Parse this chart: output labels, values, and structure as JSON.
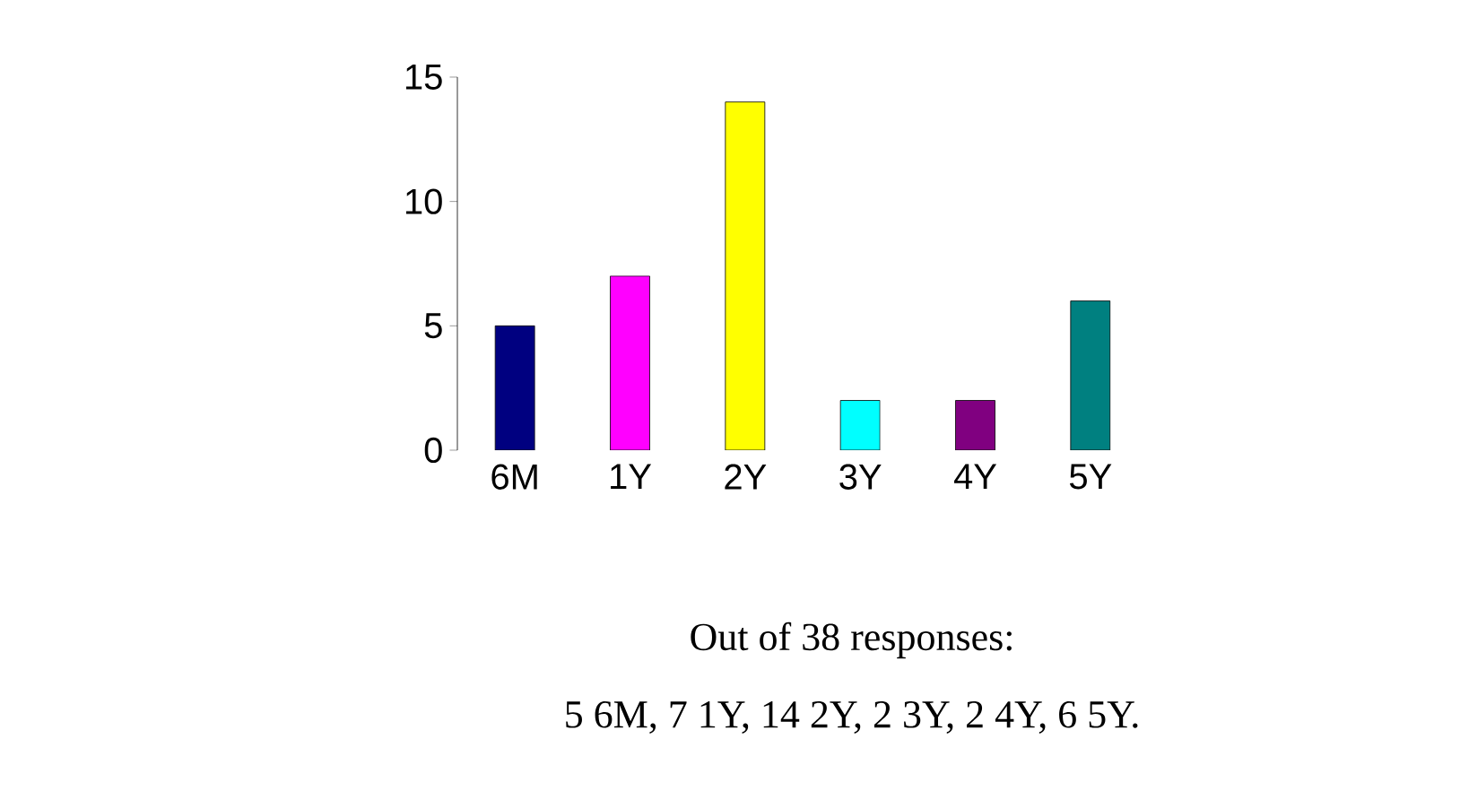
{
  "chart_data": {
    "type": "bar",
    "categories": [
      "6M",
      "1Y",
      "2Y",
      "3Y",
      "4Y",
      "5Y"
    ],
    "values": [
      5,
      7,
      14,
      2,
      2,
      6
    ],
    "colors": [
      "#000080",
      "#ff00ff",
      "#ffff00",
      "#00ffff",
      "#800080",
      "#008080"
    ],
    "ylim": [
      0,
      15
    ],
    "yticks": [
      0,
      5,
      10,
      15
    ],
    "annotations": [
      "Out of 38 responses:",
      "5 6M, 7 1Y, 14 2Y, 2 3Y, 2 4Y, 6 5Y."
    ]
  }
}
